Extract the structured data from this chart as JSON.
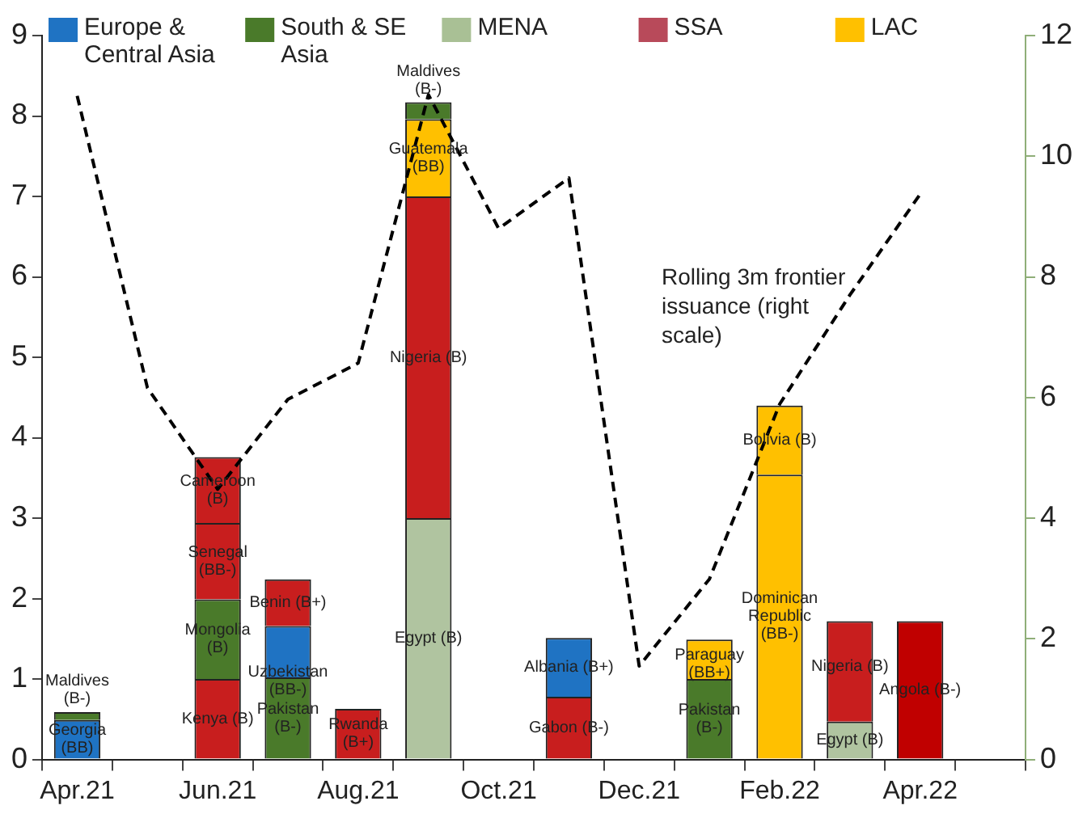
{
  "chart_data": {
    "type": "bar",
    "stacked": true,
    "legend": "top",
    "categories": [
      "Apr.21",
      null,
      "Jun.21",
      null,
      "Aug.21",
      null,
      "Oct.21",
      null,
      "Dec.21",
      null,
      "Feb.22",
      null,
      "Apr.22",
      null
    ],
    "ylim": [
      0,
      9
    ],
    "yticks": [
      0,
      1,
      2,
      3,
      4,
      5,
      6,
      7,
      8,
      9
    ],
    "y2lim": [
      0,
      12
    ],
    "y2ticks": [
      0,
      2,
      4,
      6,
      8,
      10,
      12
    ],
    "grid": false,
    "series": [
      {
        "color": "#1f73c3",
        "values": [
          0.49,
          null,
          1.0,
          1.02,
          0.63,
          3.0,
          null,
          0.78,
          null,
          1.0,
          3.54,
          0.47,
          1.72,
          null
        ],
        "colors": [
          "#1f73c3",
          null,
          "#c81e1e",
          "#4a7a2a",
          "#c81e1e",
          "#b0c4a0",
          null,
          "#c81e1e",
          null,
          "#4a7a2a",
          "#ffc000",
          "#b0c4a0",
          "#c00000",
          null
        ],
        "value_labels": [
          "Georgia (BB)",
          null,
          "Kenya (B)",
          "Pakistan (B-)",
          "Rwanda (B+)",
          "Egypt (B)",
          null,
          "Gabon (B-)",
          null,
          "Pakistan (B-)",
          "Dominican Republic (BB-)",
          "Egypt (B)",
          "Angola (B-)",
          null
        ]
      },
      {
        "color": "#4a7a2a",
        "values": [
          0.1,
          null,
          0.99,
          0.64,
          null,
          4.0,
          null,
          0.73,
          null,
          0.49,
          0.86,
          1.25,
          null,
          null
        ],
        "colors": [
          "#4a7a2a",
          null,
          "#4a7a2a",
          "#1f73c3",
          null,
          "#c81e1e",
          null,
          "#1f73c3",
          null,
          "#ffc000",
          "#ffc000",
          "#c81e1e",
          null,
          null
        ],
        "value_labels": [
          "Maldives (B-)",
          null,
          "Mongolia (B)",
          "Uzbekistan (BB-)",
          null,
          "Nigeria (B)",
          null,
          "Albania (B+)",
          null,
          "Paraguay (BB+)",
          "Bolivia (B)",
          "Nigeria (B)",
          null,
          null
        ]
      },
      {
        "color": "#c81e1e",
        "values": [
          null,
          null,
          0.95,
          0.58,
          null,
          0.96,
          null,
          null,
          null,
          null,
          null,
          null,
          null,
          null
        ],
        "colors": [
          null,
          null,
          "#c81e1e",
          "#c81e1e",
          null,
          "#ffc000",
          null,
          null,
          null,
          null,
          null,
          null,
          null,
          null
        ],
        "value_labels": [
          null,
          null,
          "Senegal (BB-)",
          "Benin (B+)",
          null,
          "Guatemala (BB)",
          null,
          null,
          null,
          null,
          null,
          null,
          null,
          null
        ]
      },
      {
        "color": "#c81e1e",
        "values": [
          null,
          null,
          0.82,
          null,
          null,
          0.21,
          null,
          null,
          null,
          null,
          null,
          null,
          null,
          null
        ],
        "colors": [
          null,
          null,
          "#c81e1e",
          null,
          null,
          "#4a7a2a",
          null,
          null,
          null,
          null,
          null,
          null,
          null,
          null
        ],
        "value_labels": [
          null,
          null,
          "Cameroon (B)",
          null,
          null,
          "Maldives (B-)",
          null,
          null,
          null,
          null,
          null,
          null,
          null,
          null
        ]
      },
      {
        "name": "Europe & Central Asia",
        "color": "#1f73c3",
        "values": [
          null,
          null,
          null,
          null,
          null,
          null,
          null,
          null,
          null,
          null,
          null,
          null,
          null,
          null
        ]
      },
      {
        "name": "South & SE Asia",
        "color": "#4a7a2a",
        "values": [
          null,
          null,
          null,
          null,
          null,
          null,
          null,
          null,
          null,
          null,
          null,
          null,
          null,
          null
        ]
      },
      {
        "name": "MENA",
        "color": "#a9c095",
        "values": [
          null,
          null,
          null,
          null,
          null,
          null,
          null,
          null,
          null,
          null,
          null,
          null,
          null,
          null
        ]
      },
      {
        "name": "SSA",
        "color": "#b84a5a",
        "values": [
          null,
          null,
          null,
          null,
          null,
          null,
          null,
          null,
          null,
          null,
          null,
          null,
          null,
          null
        ]
      },
      {
        "name": "LAC",
        "color": "#ffc000",
        "values": [
          null,
          null,
          null,
          null,
          null,
          null,
          null,
          null,
          null,
          null,
          null,
          null,
          null,
          null
        ]
      },
      {
        "type": "line",
        "axis": "y2",
        "color": "#000000",
        "line_style": "dashed",
        "marker": "none",
        "values": [
          11.0,
          6.16,
          4.48,
          5.97,
          6.57,
          11.02,
          8.8,
          9.64,
          1.55,
          2.99,
          5.89,
          7.7,
          9.37,
          null
        ]
      }
    ],
    "annotations": [
      "Rolling 3m frontier issuance (right scale)"
    ]
  }
}
